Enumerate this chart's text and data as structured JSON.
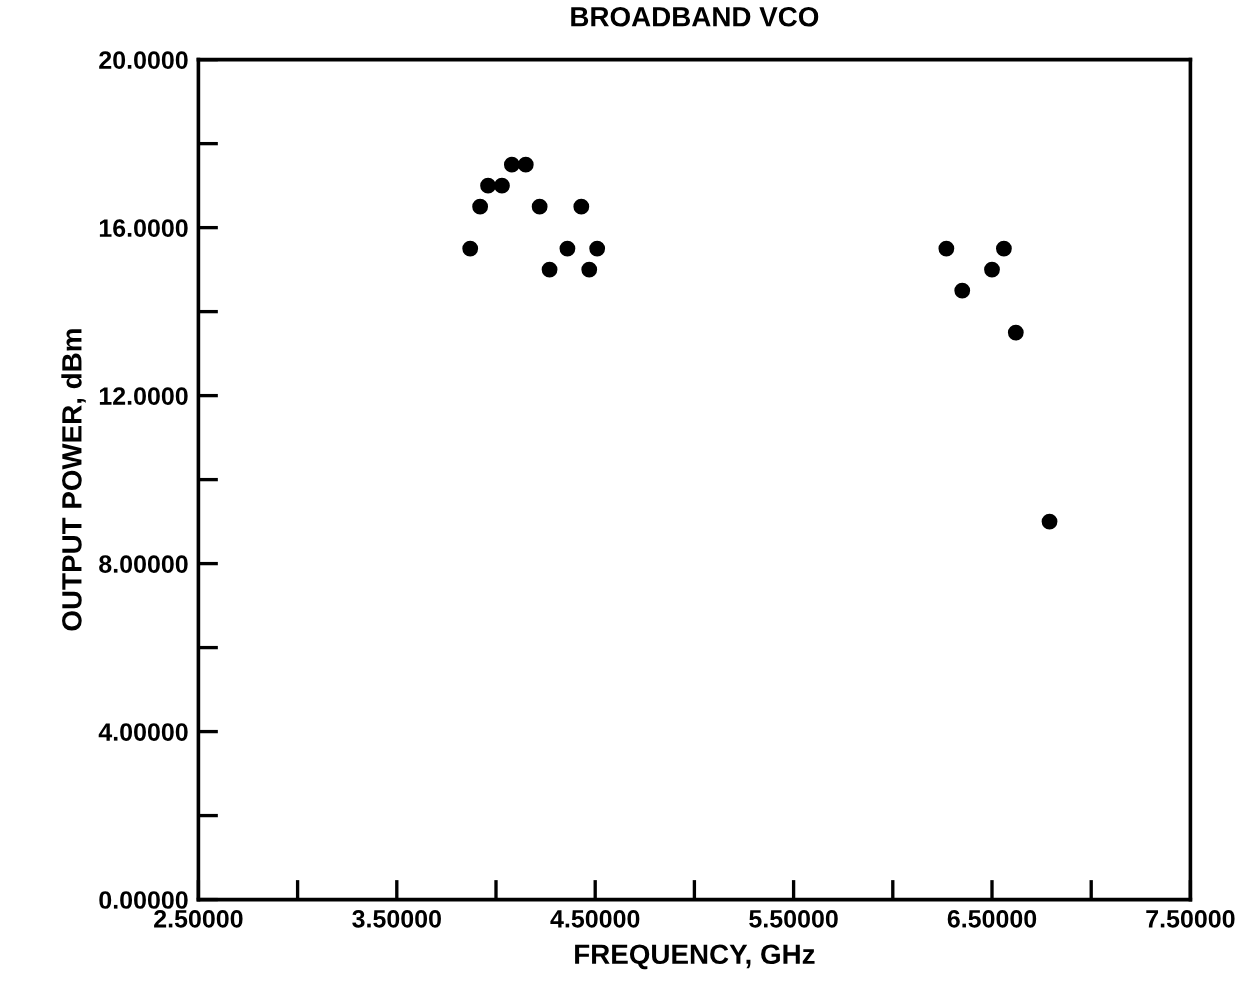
{
  "chart_data": {
    "type": "scatter",
    "title": "BROADBAND VCO",
    "xlabel": "FREQUENCY, GHz",
    "ylabel": "OUTPUT POWER, dBm",
    "x": [
      3.87,
      3.92,
      3.96,
      4.03,
      4.08,
      4.15,
      4.22,
      4.27,
      4.36,
      4.43,
      4.47,
      4.51,
      6.27,
      6.35,
      6.5,
      6.56,
      6.62,
      6.79
    ],
    "series": [
      {
        "color": "#000000",
        "values": [
          15.5,
          16.5,
          17,
          17,
          17.5,
          17.5,
          16.5,
          15,
          15.5,
          16.5,
          15,
          15.5,
          15.5,
          14.5,
          15,
          15.5,
          13.5,
          9
        ]
      }
    ],
    "xlim": [
      2.5,
      7.5
    ],
    "ylim": [
      0,
      20
    ],
    "xticks": [
      {
        "value": 2.5,
        "label": "2.50000"
      },
      {
        "value": 3.0,
        "label": null
      },
      {
        "value": 3.5,
        "label": "3.50000"
      },
      {
        "value": 4.0,
        "label": null
      },
      {
        "value": 4.5,
        "label": "4.50000"
      },
      {
        "value": 5.0,
        "label": null
      },
      {
        "value": 5.5,
        "label": "5.50000"
      },
      {
        "value": 6.0,
        "label": null
      },
      {
        "value": 6.5,
        "label": "6.50000"
      },
      {
        "value": 7.0,
        "label": null
      },
      {
        "value": 7.5,
        "label": "7.50000"
      }
    ],
    "yticks": [
      {
        "value": 0,
        "label": "0.00000"
      },
      {
        "value": 2,
        "label": null
      },
      {
        "value": 4,
        "label": "4.00000"
      },
      {
        "value": 6,
        "label": null
      },
      {
        "value": 8,
        "label": "8.00000"
      },
      {
        "value": 10,
        "label": null
      },
      {
        "value": 12,
        "label": "12.0000"
      },
      {
        "value": 14,
        "label": null
      },
      {
        "value": 16,
        "label": "16.0000"
      },
      {
        "value": 18,
        "label": null
      },
      {
        "value": 20,
        "label": "20.0000"
      }
    ],
    "grid": false,
    "marker": "circle"
  }
}
